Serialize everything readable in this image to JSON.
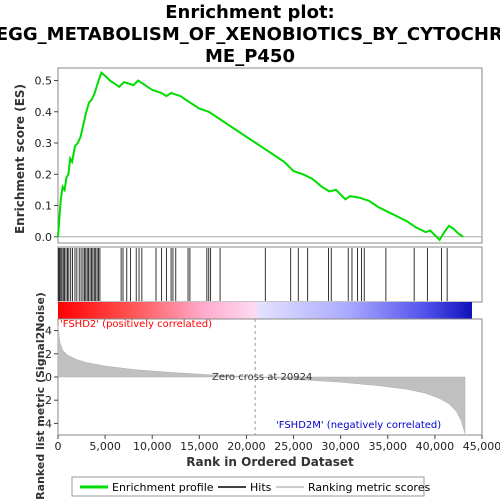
{
  "chart_data": {
    "type": "line",
    "title_lines": [
      "Enrichment plot:",
      "KEGG_METABOLISM_OF_XENOBIOTICS_BY_CYTOCHRO",
      "ME_P450"
    ],
    "top_panel": {
      "ylabel": "Enrichment score (ES)",
      "ylim": [
        -0.02,
        0.54
      ],
      "yticks": [
        "0.0",
        "0.1",
        "0.2",
        "0.3",
        "0.4",
        "0.5"
      ],
      "series": [
        {
          "name": "Enrichment profile",
          "color": "#00dd00",
          "x": [
            0,
            150,
            300,
            500,
            700,
            900,
            1100,
            1300,
            1500,
            1800,
            2100,
            2400,
            2700,
            3000,
            3300,
            3600,
            3900,
            4200,
            4600,
            5000,
            5500,
            6000,
            6500,
            7000,
            7500,
            8000,
            8500,
            9000,
            9500,
            10000,
            11000,
            11500,
            12000,
            12500,
            13000,
            13500,
            14000,
            14500,
            15000,
            15500,
            16000,
            16500,
            17000,
            18000,
            19000,
            20000,
            21000,
            22000,
            23000,
            24000,
            25000,
            26000,
            27000,
            28000,
            28800,
            29500,
            30500,
            31000,
            32000,
            33000,
            34000,
            35000,
            36000,
            37000,
            38000,
            39000,
            39500,
            40000,
            40500,
            41000,
            41500,
            42000,
            42500,
            43000
          ],
          "values": [
            0.0,
            0.06,
            0.12,
            0.16,
            0.15,
            0.19,
            0.2,
            0.25,
            0.24,
            0.29,
            0.3,
            0.32,
            0.36,
            0.4,
            0.43,
            0.44,
            0.46,
            0.49,
            0.525,
            0.515,
            0.5,
            0.49,
            0.48,
            0.495,
            0.49,
            0.485,
            0.5,
            0.49,
            0.48,
            0.47,
            0.46,
            0.45,
            0.46,
            0.455,
            0.45,
            0.44,
            0.43,
            0.42,
            0.41,
            0.405,
            0.4,
            0.39,
            0.38,
            0.36,
            0.34,
            0.32,
            0.3,
            0.28,
            0.26,
            0.24,
            0.21,
            0.2,
            0.185,
            0.16,
            0.145,
            0.15,
            0.12,
            0.13,
            0.125,
            0.115,
            0.095,
            0.08,
            0.065,
            0.05,
            0.03,
            0.015,
            0.02,
            0.005,
            -0.01,
            0.015,
            0.035,
            0.025,
            0.01,
            0.0
          ]
        }
      ]
    },
    "hits": [
      80,
      180,
      300,
      420,
      560,
      700,
      850,
      1000,
      1150,
      1350,
      1550,
      1800,
      2000,
      2250,
      2450,
      2650,
      2800,
      2950,
      3100,
      3250,
      3400,
      3550,
      3700,
      3850,
      4000,
      4150,
      4300,
      4450,
      6700,
      6900,
      7300,
      7700,
      8300,
      8600,
      8900,
      10400,
      11000,
      11500,
      12000,
      12200,
      12500,
      13800,
      14000,
      15800,
      16000,
      16200,
      17200,
      22000,
      24700,
      25500,
      26500,
      28700,
      29000,
      30800,
      31200,
      31800,
      32200,
      32500,
      34800,
      37800,
      39200,
      40700,
      41300
    ],
    "bottom_panel": {
      "ylabel": "Ranked list metric (Signal2Noise)",
      "xlabel": "Rank in Ordered Dataset",
      "ylim": [
        -5,
        5
      ],
      "yticks": [
        "-4",
        "-2",
        "0",
        "2",
        "4"
      ],
      "xlim": [
        0,
        45000
      ],
      "xticks": [
        "0",
        "5,000",
        "10,000",
        "15,000",
        "20,000",
        "25,000",
        "30,000",
        "35,000",
        "40,000",
        "45,000"
      ],
      "metric_x": [
        0,
        200,
        500,
        1000,
        2000,
        3000,
        5000,
        8000,
        12000,
        16000,
        20924,
        25000,
        30000,
        34000,
        37000,
        39000,
        40500,
        41500,
        42300,
        42800,
        43200
      ],
      "metric_y": [
        4.4,
        3.0,
        2.3,
        1.9,
        1.5,
        1.25,
        0.95,
        0.65,
        0.4,
        0.2,
        0.0,
        -0.2,
        -0.45,
        -0.75,
        -1.05,
        -1.4,
        -1.85,
        -2.3,
        -3.0,
        -3.8,
        -4.9
      ],
      "zero_cross_label": "Zero cross at 20924",
      "zero_cross_rank": 20924,
      "positive_label": "'FSHD2' (positively correlated)",
      "positive_color": "#ff0000",
      "negative_label": "'FSHD2M' (negatively correlated)",
      "negative_color": "#0000cc"
    },
    "legend": {
      "placement": "bottom",
      "items": [
        {
          "label": "Enrichment profile",
          "color": "#00dd00"
        },
        {
          "label": "Hits",
          "color": "#000000"
        },
        {
          "label": "Ranking metric scores",
          "color": "#bbbbbb"
        }
      ]
    }
  }
}
